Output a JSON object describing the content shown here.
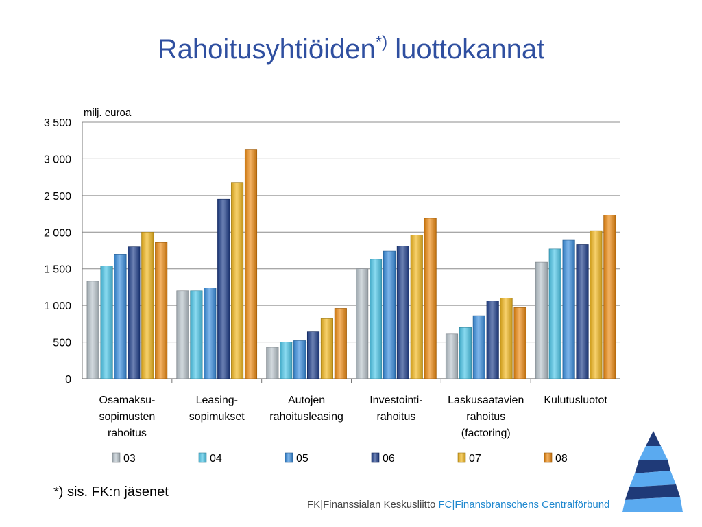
{
  "title": {
    "main": "Rahoitusyhtiöiden",
    "sup": "*)",
    "rest": " luottokannat"
  },
  "footnote": "*) sis. FK:n jäsenet",
  "org": {
    "fk_prefix": "FK",
    "fk_name": "Finanssialan Keskusliitto",
    "fc_prefix": "FC",
    "fc_name": "Finansbranschens Centralförbund"
  },
  "colors": {
    "title": "#2f4fa0",
    "grid": "#8c8c8c",
    "logo_dark": "#1f3a78",
    "logo_light": "#5aaaf0"
  },
  "chart_data": {
    "type": "bar",
    "ylabel": "milj. euroa",
    "ylim": [
      0,
      3500
    ],
    "yticks": [
      0,
      500,
      1000,
      1500,
      2000,
      2500,
      3000,
      3500
    ],
    "ytick_labels": [
      "0",
      "500",
      "1 000",
      "1 500",
      "2 000",
      "2 500",
      "3 000",
      "3 500"
    ],
    "grid": true,
    "legend": "bottom",
    "categories": [
      [
        "Osamaksu-",
        "sopimusten",
        "rahoitus"
      ],
      [
        "Leasing-",
        "sopimukset"
      ],
      [
        "Autojen",
        "rahoitusleasing"
      ],
      [
        "Investointi-",
        "rahoitus"
      ],
      [
        "Laskusaatavien",
        "rahoitus",
        "(factoring)"
      ],
      [
        "Kulutusluotot"
      ]
    ],
    "series": [
      {
        "name": "03",
        "color": "#b9c4cc",
        "values": [
          1330,
          1200,
          430,
          1500,
          610,
          1590
        ]
      },
      {
        "name": "04",
        "color": "#4cc7ea",
        "values": [
          1540,
          1200,
          500,
          1630,
          700,
          1770
        ]
      },
      {
        "name": "05",
        "color": "#3a8fe0",
        "values": [
          1700,
          1240,
          520,
          1740,
          860,
          1890
        ]
      },
      {
        "name": "06",
        "color": "#1f3f8c",
        "values": [
          1800,
          2450,
          640,
          1810,
          1060,
          1830
        ]
      },
      {
        "name": "07",
        "color": "#f2b81e",
        "values": [
          2000,
          2680,
          820,
          1960,
          1100,
          2020
        ]
      },
      {
        "name": "08",
        "color": "#ee8a10",
        "values": [
          1860,
          3130,
          960,
          2190,
          970,
          2230
        ]
      }
    ]
  }
}
